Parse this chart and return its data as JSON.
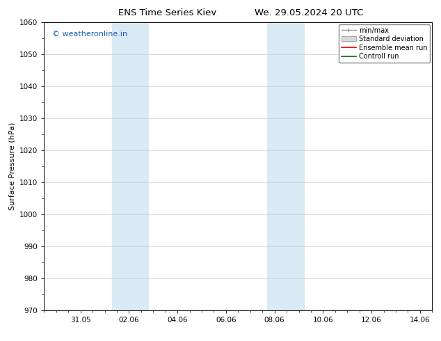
{
  "title_left": "ENS Time Series Kiev",
  "title_right": "We. 29.05.2024 20 UTC",
  "ylabel": "Surface Pressure (hPa)",
  "ylim": [
    970,
    1060
  ],
  "yticks": [
    970,
    980,
    990,
    1000,
    1010,
    1020,
    1030,
    1040,
    1050,
    1060
  ],
  "xlim": [
    0.0,
    16.0
  ],
  "xtick_labels": [
    "31.05",
    "02.06",
    "04.06",
    "06.06",
    "08.06",
    "10.06",
    "12.06",
    "14.06"
  ],
  "xtick_positions": [
    1.5,
    3.5,
    5.5,
    7.5,
    9.5,
    11.5,
    13.5,
    15.5
  ],
  "shade_regions": [
    {
      "x_start": 2.8,
      "x_end": 4.3,
      "color": "#daeaf5"
    },
    {
      "x_start": 9.2,
      "x_end": 10.7,
      "color": "#daeaf5"
    }
  ],
  "watermark_text": "© weatheronline.in",
  "watermark_color": "#1a5eb8",
  "legend_labels": [
    "min/max",
    "Standard deviation",
    "Ensemble mean run",
    "Controll run"
  ],
  "background_color": "#ffffff",
  "grid_color": "#c8c8c8",
  "title_fontsize": 9.5,
  "axis_label_fontsize": 8,
  "tick_fontsize": 7.5,
  "watermark_fontsize": 8,
  "legend_fontsize": 7
}
